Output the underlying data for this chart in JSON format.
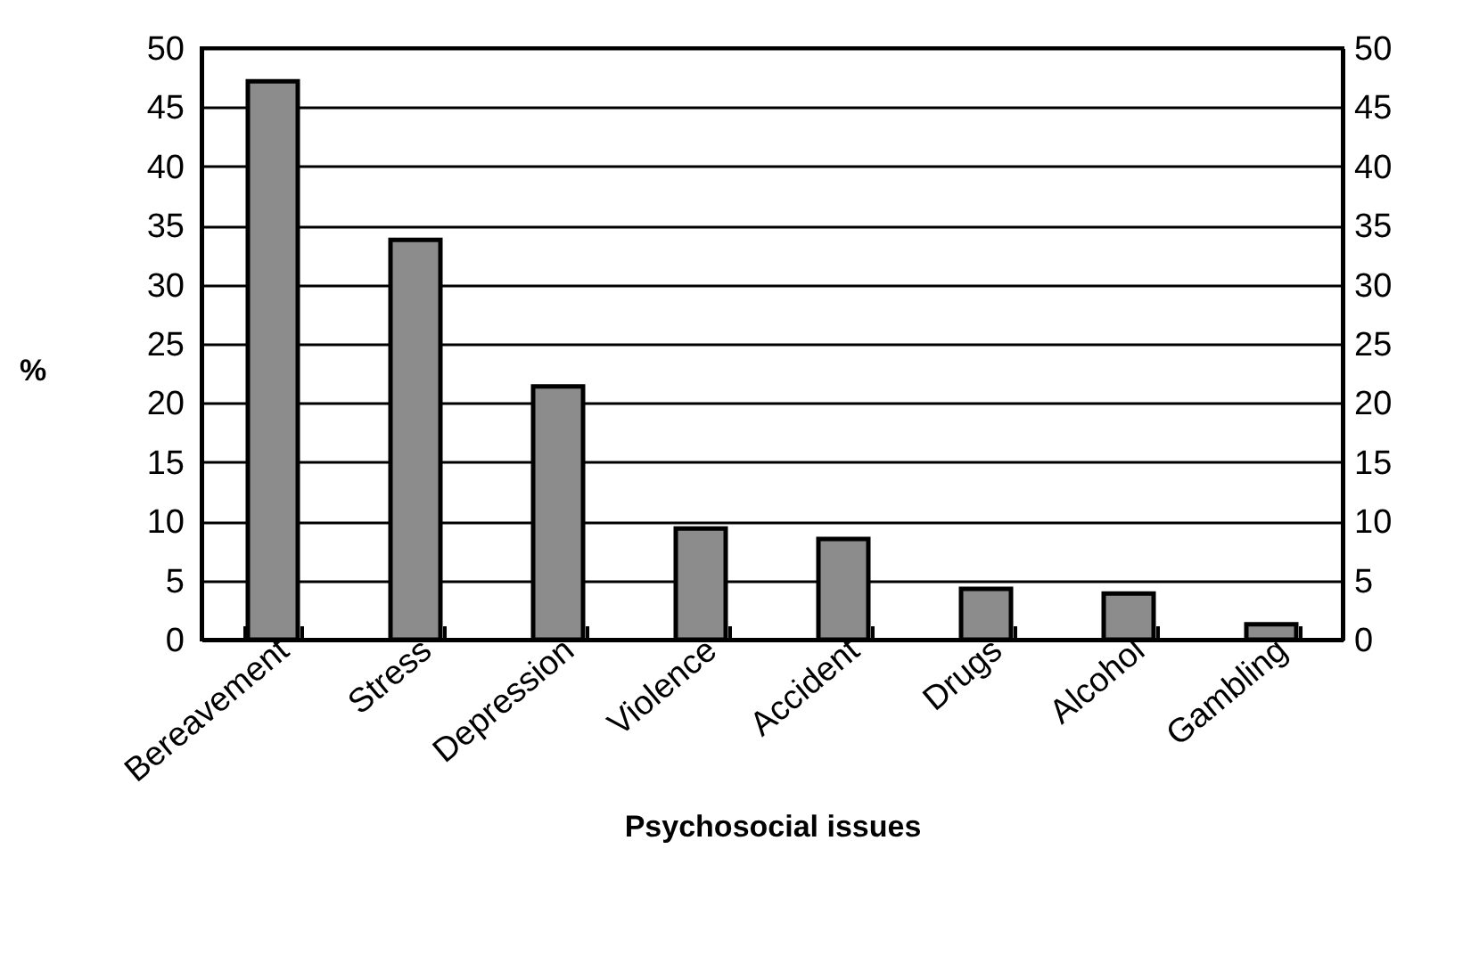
{
  "chart_data": {
    "type": "bar",
    "xlabel": "Psychosocial issues",
    "ylabel": "%",
    "categories": [
      "Bereavement",
      "Stress",
      "Depression",
      "Violence",
      "Accident",
      "Drugs",
      "Alcohol",
      "Gambling"
    ],
    "values": [
      47.2,
      33.8,
      21.4,
      9.4,
      8.5,
      4.3,
      3.9,
      1.3
    ],
    "color": "#8c8c8c",
    "ylim": [
      0,
      50
    ],
    "yticks": [
      0,
      5,
      10,
      15,
      20,
      25,
      30,
      35,
      40,
      45,
      50
    ],
    "y2lim": [
      0,
      50
    ],
    "y2ticks": [
      0,
      5,
      10,
      15,
      20,
      25,
      30,
      35,
      40,
      45,
      50
    ],
    "grid": "y"
  }
}
